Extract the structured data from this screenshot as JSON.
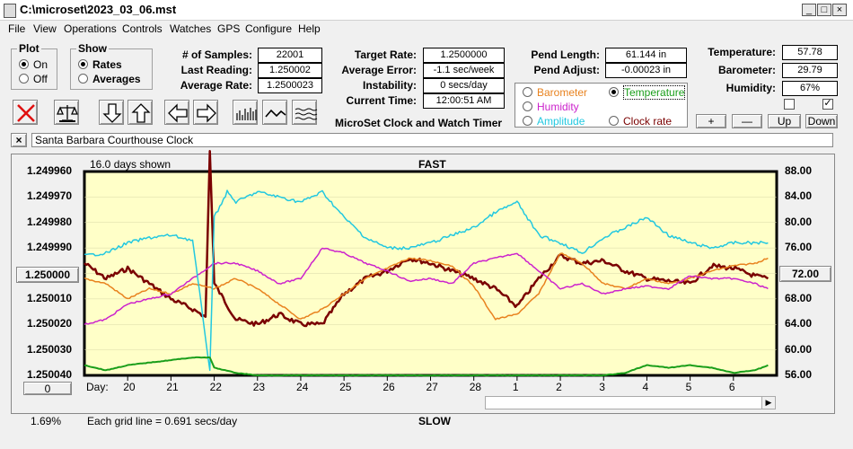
{
  "window": {
    "title": "C:\\microset\\2023_03_06.mst",
    "min": "_",
    "max": "□",
    "close": "×"
  },
  "menu": [
    "File",
    "View",
    "Operations",
    "Controls",
    "Watches",
    "GPS",
    "Configure",
    "Help"
  ],
  "plot_group": {
    "title": "Plot",
    "on": "On",
    "off": "Off",
    "selected": "On"
  },
  "show_group": {
    "title": "Show",
    "rates": "Rates",
    "averages": "Averages",
    "selected": "Rates"
  },
  "stats": {
    "samples_label": "# of Samples:",
    "samples": "22001",
    "last_label": "Last Reading:",
    "last": "1.250002",
    "avgrate_label": "Average Rate:",
    "avgrate": "1.2500023",
    "target_label": "Target Rate:",
    "target": "1.2500000",
    "avgerr_label": "Average Error:",
    "avgerr": "-1.1 sec/week",
    "instab_label": "Instability:",
    "instab": "0 secs/day",
    "time_label": "Current Time:",
    "time": "12:00:51 AM",
    "pendlen_label": "Pend Length:",
    "pendlen": "61.144 in",
    "pendadj_label": "Pend Adjust:",
    "pendadj": "-0.00023 in",
    "temp_label": "Temperature:",
    "temp": "57.78",
    "baro_label": "Barometer:",
    "baro": "29.79",
    "hum_label": "Humidity:",
    "hum": "67%"
  },
  "app_caption": "MicroSet Clock and Watch Timer",
  "aux_options": {
    "barometer": "Barometer",
    "temperature": "Temperature",
    "humidity": "Humidity",
    "amplitude": "Amplitude",
    "clockrate": "Clock rate",
    "selected": "Temperature",
    "colors": {
      "barometer": "#e8821e",
      "temperature": "#1a9e1a",
      "humidity": "#cc22cc",
      "amplitude": "#22c8e0",
      "clockrate": "#7a0000"
    }
  },
  "aux_buttons": {
    "plus": "+",
    "minus": "—",
    "up": "Up",
    "down": "Down"
  },
  "checkboxes": [
    {
      "checked": false
    },
    {
      "checked": true,
      "mark": "✓"
    }
  ],
  "clock_bar": {
    "close": "×",
    "name": "Santa Barbara Courthouse Clock"
  },
  "chart_data": {
    "type": "line",
    "header_left": "16.0 days shown",
    "header_center": "FAST",
    "footer_center": "SLOW",
    "footer_left": "Each grid line = 0.691 secs/day",
    "percent": "1.69%",
    "y_left_ticks": [
      "1.249960",
      "1.249970",
      "1.249980",
      "1.249990",
      "1.250000",
      "1.250010",
      "1.250020",
      "1.250030",
      "1.250040"
    ],
    "y_left_center_button": "1.250000",
    "y_left_range": [
      1.24996,
      1.25004
    ],
    "y_right_ticks": [
      "88.00",
      "84.00",
      "80.00",
      "76.00",
      "72.00",
      "68.00",
      "64.00",
      "60.00",
      "56.00"
    ],
    "y_right_center_button": "72.00",
    "y_right_range": [
      56,
      88
    ],
    "x_label": "Day:",
    "x_ticks": [
      "20",
      "21",
      "22",
      "23",
      "24",
      "25",
      "26",
      "27",
      "28",
      "1",
      "2",
      "3",
      "4",
      "5",
      "6"
    ],
    "x_range": [
      19,
      35
    ],
    "scroll_button_left": "0",
    "series": [
      {
        "key": "clockrate",
        "color": "#7a0000",
        "width": 2.5,
        "x": [
          19.0,
          19.5,
          20.0,
          20.5,
          21.0,
          21.5,
          21.8,
          21.9,
          22.0,
          22.5,
          23.0,
          23.5,
          24.0,
          24.5,
          25.0,
          25.5,
          26.0,
          26.5,
          27.0,
          27.5,
          28.0,
          28.5,
          29.0,
          29.5,
          30.0,
          30.5,
          31.0,
          31.5,
          32.0,
          32.5,
          33.0,
          33.5,
          34.0,
          34.5,
          34.8
        ],
        "y": [
          1.249996,
          1.250002,
          1.249998,
          1.250004,
          1.25001,
          1.250014,
          1.250017,
          1.249952,
          1.250004,
          1.250018,
          1.25002,
          1.250016,
          1.25002,
          1.25002,
          1.250008,
          1.250002,
          1.249999,
          1.249994,
          1.249996,
          1.249999,
          1.250002,
          1.250006,
          1.250013,
          1.250002,
          1.249993,
          1.249996,
          1.249995,
          1.249999,
          1.250002,
          1.250003,
          1.250004,
          1.249997,
          1.249998,
          1.250001,
          1.250002
        ]
      },
      {
        "key": "barometer",
        "color": "#e8821e",
        "width": 1.5,
        "x": [
          19.0,
          19.5,
          20.0,
          20.5,
          21.0,
          21.5,
          22.0,
          22.5,
          23.0,
          23.5,
          24.0,
          24.5,
          25.0,
          25.5,
          26.0,
          26.5,
          27.0,
          27.5,
          28.0,
          28.5,
          29.0,
          29.5,
          30.0,
          30.5,
          31.0,
          31.5,
          32.0,
          32.5,
          33.0,
          33.5,
          34.0,
          34.5,
          34.8
        ],
        "y": [
          1.250002,
          1.250004,
          1.25001,
          1.250006,
          1.250008,
          1.250004,
          1.250006,
          1.250002,
          1.250006,
          1.250012,
          1.250018,
          1.250014,
          1.250008,
          1.250002,
          1.249998,
          1.249994,
          1.249995,
          1.249997,
          1.250005,
          1.250018,
          1.250016,
          1.250008,
          1.249992,
          1.249996,
          1.250004,
          1.250006,
          1.250002,
          1.250004,
          1.250002,
          1.249999,
          1.249997,
          1.249996,
          1.249994
        ]
      },
      {
        "key": "humidity",
        "color": "#cc22cc",
        "width": 1.5,
        "x": [
          19.0,
          19.5,
          20.0,
          20.5,
          21.0,
          21.5,
          22.0,
          22.5,
          23.0,
          23.5,
          24.0,
          24.5,
          25.0,
          25.5,
          26.0,
          26.5,
          27.0,
          27.5,
          28.0,
          28.5,
          29.0,
          29.5,
          30.0,
          30.5,
          31.0,
          31.5,
          32.0,
          32.5,
          33.0,
          33.5,
          34.0,
          34.5,
          34.8
        ],
        "y": [
          1.25002,
          1.250018,
          1.250012,
          1.25001,
          1.250008,
          1.250002,
          1.249996,
          1.249996,
          1.249999,
          1.250004,
          1.250002,
          1.24999,
          1.249992,
          1.249996,
          1.249999,
          1.250003,
          1.250002,
          1.250004,
          1.249996,
          1.249994,
          1.249992,
          1.249999,
          1.250006,
          1.250004,
          1.250008,
          1.250006,
          1.250005,
          1.250006,
          1.250001,
          1.250002,
          1.250002,
          1.250004,
          1.250006
        ]
      },
      {
        "key": "amplitude",
        "color": "#22c8e0",
        "width": 1.5,
        "x": [
          19.0,
          19.5,
          20.0,
          20.5,
          21.0,
          21.5,
          21.9,
          22.0,
          22.3,
          22.5,
          23.0,
          23.5,
          24.0,
          24.5,
          25.0,
          25.5,
          26.0,
          26.5,
          27.0,
          27.5,
          28.0,
          28.5,
          29.0,
          29.5,
          30.0,
          30.5,
          31.0,
          31.5,
          32.0,
          32.5,
          33.0,
          33.5,
          34.0,
          34.5,
          34.8
        ],
        "y": [
          1.249993,
          1.249992,
          1.249988,
          1.249986,
          1.249985,
          1.249987,
          1.250038,
          1.249978,
          1.249968,
          1.249972,
          1.249968,
          1.24997,
          1.249972,
          1.249968,
          1.249978,
          1.249986,
          1.24999,
          1.24999,
          1.249988,
          1.249985,
          1.249982,
          1.249976,
          1.249972,
          1.249985,
          1.249988,
          1.249992,
          1.249986,
          1.249982,
          1.249978,
          1.249985,
          1.249988,
          1.24999,
          1.249988,
          1.249988,
          1.249988
        ]
      },
      {
        "key": "temperature",
        "color": "#1a9e1a",
        "width": 2,
        "x": [
          19.0,
          19.5,
          20.0,
          20.5,
          21.0,
          21.5,
          21.9,
          22.0,
          22.5,
          23.0,
          24.0,
          25.0,
          26.0,
          27.0,
          28.0,
          29.0,
          30.0,
          31.0,
          31.5,
          32.0,
          32.5,
          33.0,
          33.5,
          34.0,
          34.5,
          34.8
        ],
        "y": [
          1.250036,
          1.250038,
          1.250036,
          1.250035,
          1.250034,
          1.250033,
          1.250033,
          1.250037,
          1.250039,
          1.25004,
          1.25004,
          1.25004,
          1.25004,
          1.25004,
          1.25004,
          1.25004,
          1.25004,
          1.25004,
          1.250039,
          1.250036,
          1.250037,
          1.250036,
          1.250037,
          1.250039,
          1.250038,
          1.250036
        ]
      }
    ]
  }
}
